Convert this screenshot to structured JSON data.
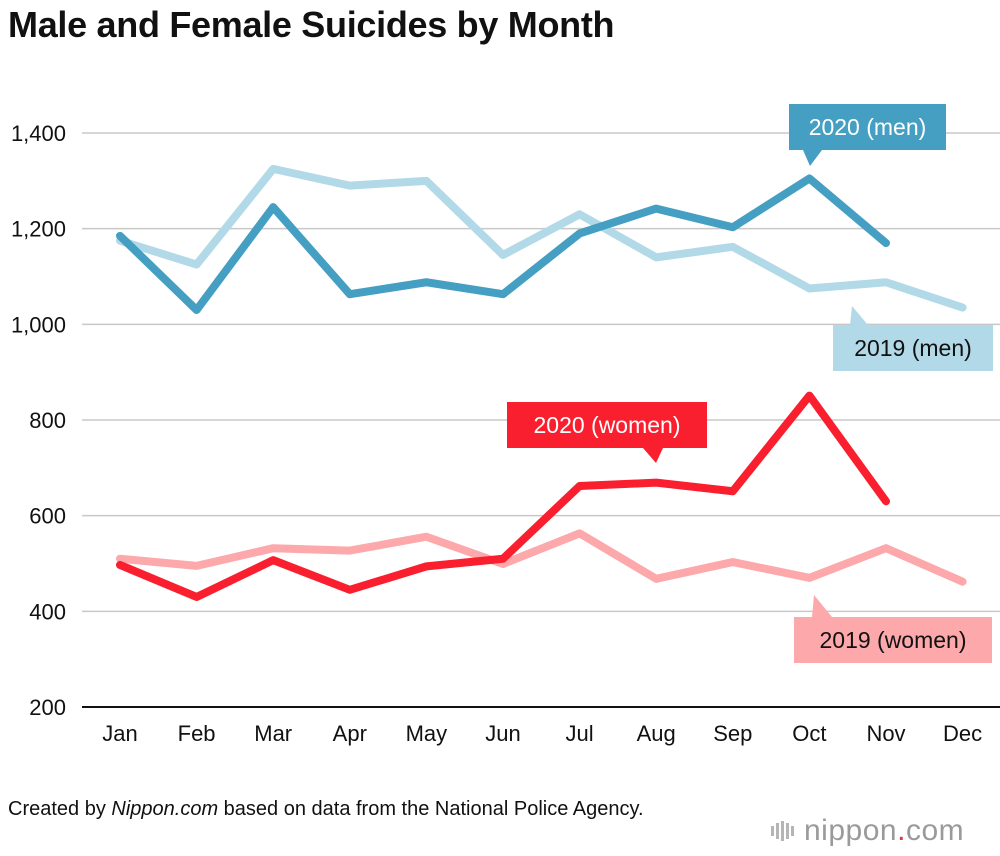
{
  "title": "Male and Female Suicides by Month",
  "credit": {
    "prefix": "Created by ",
    "source": "Nippon.com",
    "suffix": " based on data from the National Police Agency."
  },
  "logo": {
    "left": "nippon",
    "dot": ".",
    "right": "com"
  },
  "colors": {
    "men_2020": "#449fc3",
    "men_2019": "#b2d9e7",
    "women_2020": "#fa1f2e",
    "women_2019": "#fda8ab",
    "grid": "#c8c8c8",
    "axis": "#111111"
  },
  "chart_data": {
    "type": "line",
    "title": "Male and Female Suicides by Month",
    "categories": [
      "Jan",
      "Feb",
      "Mar",
      "Apr",
      "May",
      "Jun",
      "Jul",
      "Aug",
      "Sep",
      "Oct",
      "Nov",
      "Dec"
    ],
    "ylim": [
      200,
      1400
    ],
    "yticks": [
      200,
      400,
      600,
      800,
      1000,
      1200,
      1400
    ],
    "ytick_labels": [
      "200",
      "400",
      "600",
      "800",
      "1,000",
      "1,200",
      "1,400"
    ],
    "xlabel": "",
    "ylabel": "",
    "grid": true,
    "series": [
      {
        "name": "2019 (men)",
        "color": "#b2d9e7",
        "label_text": "2019 (men)",
        "label_text_color": "#111111",
        "values": [
          1175,
          1125,
          1325,
          1290,
          1300,
          1145,
          1230,
          1140,
          1162,
          1075,
          1088,
          1035
        ]
      },
      {
        "name": "2020 (men)",
        "color": "#449fc3",
        "label_text": "2020 (men)",
        "label_text_color": "#ffffff",
        "values": [
          1185,
          1030,
          1245,
          1063,
          1088,
          1063,
          1190,
          1242,
          1203,
          1305,
          1170,
          null
        ]
      },
      {
        "name": "2019 (women)",
        "color": "#fda8ab",
        "label_text": "2019 (women)",
        "label_text_color": "#111111",
        "values": [
          510,
          495,
          532,
          527,
          556,
          499,
          563,
          468,
          503,
          470,
          532,
          462
        ]
      },
      {
        "name": "2020 (women)",
        "color": "#fa1f2e",
        "label_text": "2020 (women)",
        "label_text_color": "#ffffff",
        "values": [
          497,
          430,
          507,
          445,
          494,
          510,
          662,
          669,
          651,
          851,
          630,
          null
        ]
      }
    ]
  }
}
